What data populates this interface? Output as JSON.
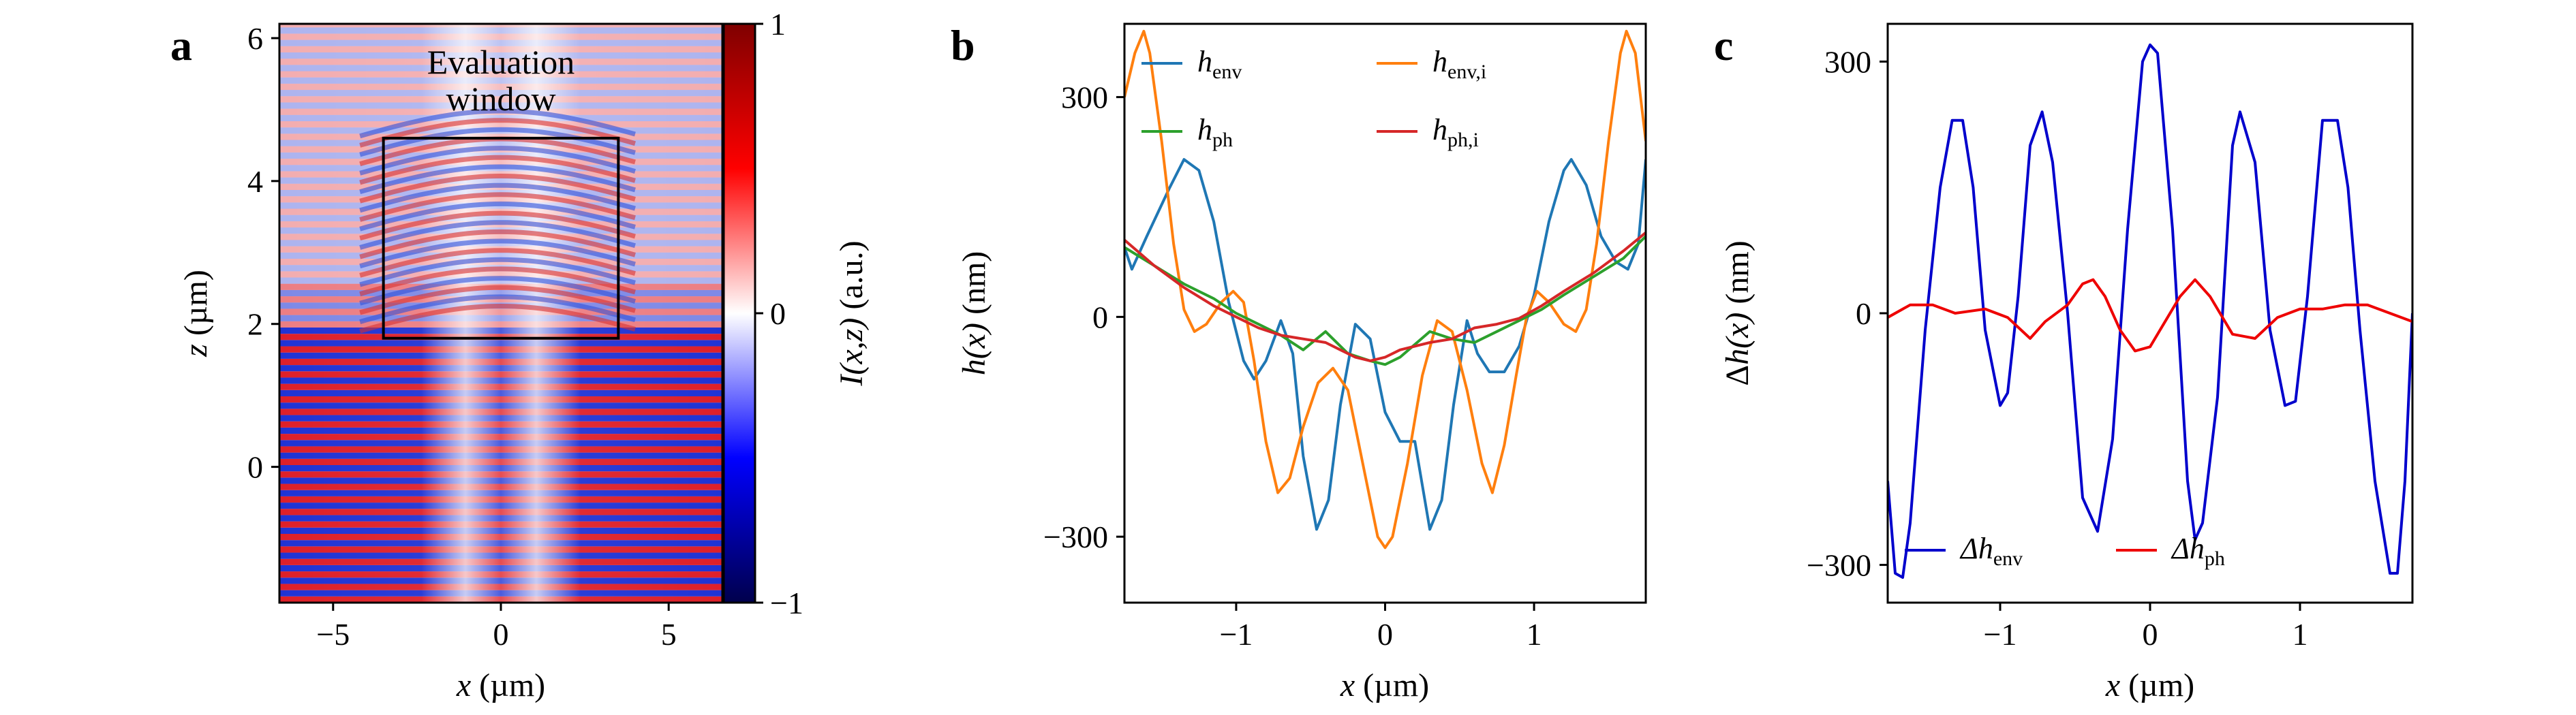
{
  "chart_data": [
    {
      "panel": "a",
      "type": "heatmap",
      "xlabel_var": "x",
      "xlabel_unit": " (µm)",
      "ylabel_var": "z",
      "ylabel_unit": " (µm)",
      "xlim": [
        -6.6,
        6.6
      ],
      "ylim": [
        -1.9,
        6.2
      ],
      "xticks": [
        -5,
        0,
        5
      ],
      "yticks": [
        0,
        2,
        4,
        6
      ],
      "annotation_line1": "Evaluation",
      "annotation_line2": "window",
      "evaluation_window": {
        "x": [
          -3.5,
          3.5
        ],
        "z": [
          1.8,
          4.6
        ]
      },
      "colorbar": {
        "label": "I(x,z) (a.u.)",
        "label_i": "I",
        "label_args": "(x,z)",
        "label_unit": " (a.u.)",
        "range": [
          -1,
          1
        ],
        "ticks": [
          {
            "value": 1,
            "label": "1"
          },
          {
            "value": 0,
            "label": "0"
          },
          {
            "value": -1,
            "label": "−1"
          }
        ],
        "colors": [
          "#00004c",
          "#0000ff",
          "#ffffff",
          "#ff0000",
          "#7f0000"
        ]
      }
    },
    {
      "panel": "b",
      "type": "line",
      "xlabel_var": "x",
      "xlabel_unit": " (µm)",
      "ylabel_var": "h",
      "ylabel_args": "(x)",
      "ylabel_unit": " (nm)",
      "xlim": [
        -1.75,
        1.75
      ],
      "ylim": [
        -390,
        400
      ],
      "xticks": [
        {
          "value": -1,
          "label": "−1"
        },
        {
          "value": 0,
          "label": "0"
        },
        {
          "value": 1,
          "label": "1"
        }
      ],
      "yticks": [
        {
          "value": -300,
          "label": "−300"
        },
        {
          "value": 0,
          "label": "0"
        },
        {
          "value": 300,
          "label": "300"
        }
      ],
      "legend_position": "top",
      "series": [
        {
          "name": "h_env",
          "legend_main": "h",
          "legend_sub": "env",
          "color": "#1f77b4",
          "points": [
            [
              -1.75,
              95
            ],
            [
              -1.7,
              65
            ],
            [
              -1.6,
              110
            ],
            [
              -1.45,
              175
            ],
            [
              -1.35,
              215
            ],
            [
              -1.25,
              200
            ],
            [
              -1.15,
              130
            ],
            [
              -1.05,
              20
            ],
            [
              -0.95,
              -60
            ],
            [
              -0.88,
              -85
            ],
            [
              -0.8,
              -60
            ],
            [
              -0.7,
              -5
            ],
            [
              -0.62,
              -50
            ],
            [
              -0.55,
              -190
            ],
            [
              -0.46,
              -290
            ],
            [
              -0.38,
              -250
            ],
            [
              -0.3,
              -120
            ],
            [
              -0.2,
              -10
            ],
            [
              -0.1,
              -30
            ],
            [
              0,
              -130
            ],
            [
              0.1,
              -170
            ],
            [
              0.2,
              -170
            ],
            [
              0.3,
              -290
            ],
            [
              0.38,
              -250
            ],
            [
              0.46,
              -120
            ],
            [
              0.55,
              -5
            ],
            [
              0.62,
              -50
            ],
            [
              0.7,
              -75
            ],
            [
              0.8,
              -75
            ],
            [
              0.9,
              -40
            ],
            [
              1.0,
              30
            ],
            [
              1.1,
              130
            ],
            [
              1.2,
              200
            ],
            [
              1.25,
              215
            ],
            [
              1.35,
              180
            ],
            [
              1.45,
              110
            ],
            [
              1.55,
              75
            ],
            [
              1.63,
              65
            ],
            [
              1.7,
              100
            ],
            [
              1.75,
              215
            ]
          ]
        },
        {
          "name": "h_env,i",
          "legend_main": "h",
          "legend_sub": "env,i",
          "color": "#ff7f0e",
          "points": [
            [
              -1.75,
              300
            ],
            [
              -1.68,
              360
            ],
            [
              -1.62,
              390
            ],
            [
              -1.58,
              360
            ],
            [
              -1.5,
              240
            ],
            [
              -1.42,
              100
            ],
            [
              -1.35,
              10
            ],
            [
              -1.28,
              -20
            ],
            [
              -1.2,
              -10
            ],
            [
              -1.1,
              20
            ],
            [
              -1.02,
              35
            ],
            [
              -0.95,
              20
            ],
            [
              -0.88,
              -60
            ],
            [
              -0.8,
              -170
            ],
            [
              -0.72,
              -240
            ],
            [
              -0.64,
              -220
            ],
            [
              -0.55,
              -150
            ],
            [
              -0.45,
              -90
            ],
            [
              -0.35,
              -70
            ],
            [
              -0.25,
              -100
            ],
            [
              -0.15,
              -200
            ],
            [
              -0.05,
              -300
            ],
            [
              0,
              -315
            ],
            [
              0.05,
              -300
            ],
            [
              0.15,
              -200
            ],
            [
              0.25,
              -80
            ],
            [
              0.35,
              -5
            ],
            [
              0.45,
              -20
            ],
            [
              0.55,
              -100
            ],
            [
              0.65,
              -200
            ],
            [
              0.72,
              -240
            ],
            [
              0.8,
              -175
            ],
            [
              0.88,
              -80
            ],
            [
              0.95,
              0
            ],
            [
              1.02,
              35
            ],
            [
              1.1,
              20
            ],
            [
              1.2,
              -10
            ],
            [
              1.28,
              -20
            ],
            [
              1.35,
              10
            ],
            [
              1.42,
              100
            ],
            [
              1.5,
              240
            ],
            [
              1.58,
              360
            ],
            [
              1.62,
              390
            ],
            [
              1.68,
              360
            ],
            [
              1.75,
              240
            ]
          ]
        },
        {
          "name": "h_ph",
          "legend_main": "h",
          "legend_sub": "ph",
          "color": "#2ca02c",
          "points": [
            [
              -1.75,
              95
            ],
            [
              -1.55,
              70
            ],
            [
              -1.35,
              45
            ],
            [
              -1.15,
              25
            ],
            [
              -1.0,
              5
            ],
            [
              -0.85,
              -10
            ],
            [
              -0.7,
              -25
            ],
            [
              -0.55,
              -45
            ],
            [
              -0.4,
              -20
            ],
            [
              -0.25,
              -50
            ],
            [
              -0.1,
              -60
            ],
            [
              0,
              -65
            ],
            [
              0.1,
              -55
            ],
            [
              0.3,
              -20
            ],
            [
              0.45,
              -30
            ],
            [
              0.6,
              -35
            ],
            [
              0.75,
              -20
            ],
            [
              0.9,
              -5
            ],
            [
              1.05,
              10
            ],
            [
              1.2,
              30
            ],
            [
              1.4,
              55
            ],
            [
              1.6,
              80
            ],
            [
              1.75,
              110
            ]
          ]
        },
        {
          "name": "h_ph,i",
          "legend_main": "h",
          "legend_sub": "ph,i",
          "color": "#d62728",
          "points": [
            [
              -1.75,
              105
            ],
            [
              -1.55,
              70
            ],
            [
              -1.35,
              40
            ],
            [
              -1.15,
              15
            ],
            [
              -1.0,
              0
            ],
            [
              -0.85,
              -15
            ],
            [
              -0.7,
              -25
            ],
            [
              -0.55,
              -30
            ],
            [
              -0.4,
              -35
            ],
            [
              -0.3,
              -45
            ],
            [
              -0.2,
              -55
            ],
            [
              -0.1,
              -60
            ],
            [
              0,
              -55
            ],
            [
              0.1,
              -45
            ],
            [
              0.2,
              -40
            ],
            [
              0.3,
              -35
            ],
            [
              0.45,
              -30
            ],
            [
              0.6,
              -15
            ],
            [
              0.75,
              -10
            ],
            [
              0.9,
              -2
            ],
            [
              1.05,
              15
            ],
            [
              1.2,
              35
            ],
            [
              1.4,
              60
            ],
            [
              1.6,
              90
            ],
            [
              1.75,
              115
            ]
          ]
        }
      ]
    },
    {
      "panel": "c",
      "type": "line",
      "xlabel_var": "x",
      "xlabel_unit": " (µm)",
      "ylabel_delta": "Δ",
      "ylabel_var": "h",
      "ylabel_args": "(x)",
      "ylabel_unit": " (nm)",
      "xlim": [
        -1.75,
        1.75
      ],
      "ylim": [
        -345,
        345
      ],
      "xticks": [
        {
          "value": -1,
          "label": "−1"
        },
        {
          "value": 0,
          "label": "0"
        },
        {
          "value": 1,
          "label": "1"
        }
      ],
      "yticks": [
        {
          "value": -300,
          "label": "−300"
        },
        {
          "value": 0,
          "label": "0"
        },
        {
          "value": 300,
          "label": "300"
        }
      ],
      "legend_position": "bottom",
      "series": [
        {
          "name": "Δh_env",
          "legend_main": "Δh",
          "legend_sub": "env",
          "color": "#0000cc",
          "points": [
            [
              -1.75,
              -200
            ],
            [
              -1.7,
              -310
            ],
            [
              -1.65,
              -315
            ],
            [
              -1.6,
              -250
            ],
            [
              -1.5,
              -20
            ],
            [
              -1.4,
              150
            ],
            [
              -1.32,
              230
            ],
            [
              -1.25,
              230
            ],
            [
              -1.18,
              150
            ],
            [
              -1.1,
              -20
            ],
            [
              -1.0,
              -110
            ],
            [
              -0.95,
              -95
            ],
            [
              -0.88,
              20
            ],
            [
              -0.8,
              200
            ],
            [
              -0.72,
              240
            ],
            [
              -0.65,
              180
            ],
            [
              -0.55,
              0
            ],
            [
              -0.45,
              -220
            ],
            [
              -0.35,
              -260
            ],
            [
              -0.25,
              -150
            ],
            [
              -0.15,
              100
            ],
            [
              -0.05,
              300
            ],
            [
              0,
              320
            ],
            [
              0.05,
              310
            ],
            [
              0.15,
              100
            ],
            [
              0.25,
              -200
            ],
            [
              0.3,
              -270
            ],
            [
              0.35,
              -250
            ],
            [
              0.45,
              -100
            ],
            [
              0.55,
              200
            ],
            [
              0.6,
              240
            ],
            [
              0.7,
              180
            ],
            [
              0.8,
              -20
            ],
            [
              0.9,
              -110
            ],
            [
              0.97,
              -105
            ],
            [
              1.05,
              20
            ],
            [
              1.15,
              230
            ],
            [
              1.25,
              230
            ],
            [
              1.32,
              150
            ],
            [
              1.4,
              -20
            ],
            [
              1.5,
              -200
            ],
            [
              1.6,
              -310
            ],
            [
              1.65,
              -310
            ],
            [
              1.7,
              -200
            ],
            [
              1.75,
              0
            ]
          ]
        },
        {
          "name": "Δh_ph",
          "legend_main": "Δh",
          "legend_sub": "ph",
          "color": "#ee0000",
          "points": [
            [
              -1.75,
              -5
            ],
            [
              -1.6,
              10
            ],
            [
              -1.45,
              10
            ],
            [
              -1.3,
              0
            ],
            [
              -1.1,
              5
            ],
            [
              -0.95,
              -5
            ],
            [
              -0.8,
              -30
            ],
            [
              -0.7,
              -10
            ],
            [
              -0.55,
              10
            ],
            [
              -0.45,
              35
            ],
            [
              -0.38,
              40
            ],
            [
              -0.3,
              20
            ],
            [
              -0.2,
              -20
            ],
            [
              -0.1,
              -45
            ],
            [
              0,
              -40
            ],
            [
              0.1,
              -10
            ],
            [
              0.2,
              20
            ],
            [
              0.3,
              40
            ],
            [
              0.4,
              20
            ],
            [
              0.55,
              -25
            ],
            [
              0.7,
              -30
            ],
            [
              0.85,
              -5
            ],
            [
              1.0,
              5
            ],
            [
              1.15,
              5
            ],
            [
              1.3,
              10
            ],
            [
              1.45,
              10
            ],
            [
              1.6,
              0
            ],
            [
              1.75,
              -10
            ]
          ]
        }
      ]
    }
  ]
}
